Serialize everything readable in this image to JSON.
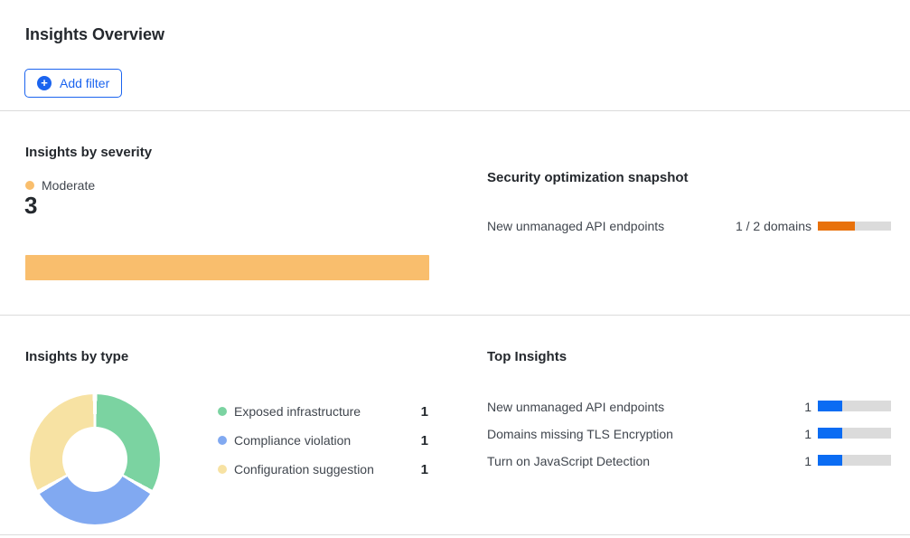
{
  "header": {
    "title": "Insights Overview",
    "add_filter_label": "Add filter",
    "plus_glyph": "+"
  },
  "colors": {
    "accent_blue": "#1B64EF",
    "top_insights_bar_blue": "#0B6CF3",
    "snapshot_orange": "#E8710A",
    "moderate_orange": "#F9BE6D",
    "donut_green": "#7BD3A1",
    "donut_blue": "#81A9F1",
    "donut_yellow": "#F7E2A3",
    "progress_track_gray": "#DBDBDB"
  },
  "chart_data": [
    {
      "id": "insights_by_severity",
      "type": "bar",
      "orientation": "horizontal",
      "title": "Insights by severity",
      "categories": [
        "Moderate"
      ],
      "values": [
        3
      ],
      "xmax": 3,
      "colors": [
        "#F9BE6D"
      ],
      "legend_position": "top-left"
    },
    {
      "id": "security_optimization_snapshot",
      "type": "bar",
      "orientation": "horizontal",
      "title": "Security optimization snapshot",
      "categories": [
        "New unmanaged API endpoints"
      ],
      "values": [
        1
      ],
      "totals": [
        2
      ],
      "progress_labels": [
        "1 / 2 domains"
      ],
      "colors": [
        "#E8710A"
      ]
    },
    {
      "id": "insights_by_type",
      "type": "pie",
      "donut": true,
      "title": "Insights by type",
      "categories": [
        "Exposed infrastructure",
        "Compliance violation",
        "Configuration suggestion"
      ],
      "values": [
        1,
        1,
        1
      ],
      "colors": [
        "#7BD3A1",
        "#81A9F1",
        "#F7E2A3"
      ],
      "legend_position": "right"
    },
    {
      "id": "top_insights",
      "type": "bar",
      "orientation": "horizontal",
      "title": "Top Insights",
      "categories": [
        "New unmanaged API endpoints",
        "Domains missing TLS Encryption",
        "Turn on JavaScript Detection"
      ],
      "values": [
        1,
        1,
        1
      ],
      "xmax": 3,
      "colors": [
        "#0B6CF3",
        "#0B6CF3",
        "#0B6CF3"
      ]
    }
  ]
}
